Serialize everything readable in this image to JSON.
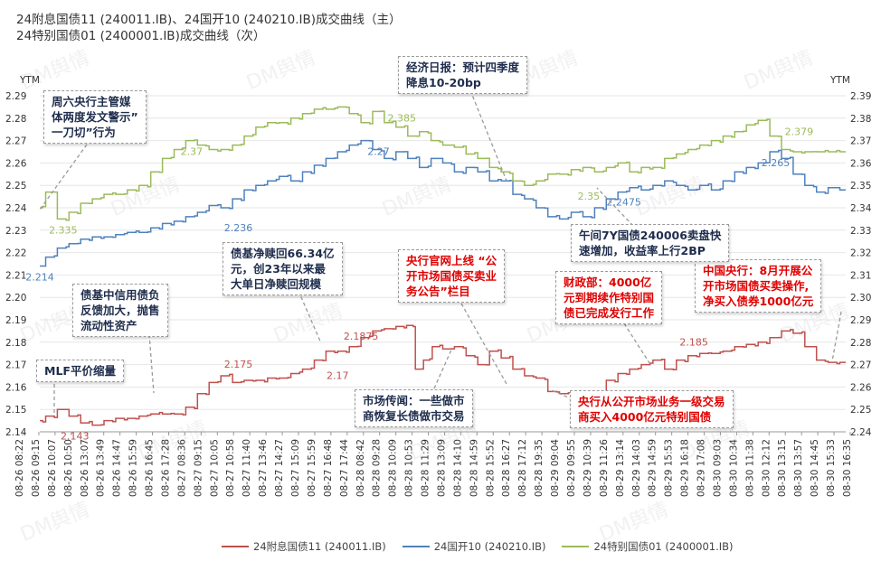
{
  "title_line1": "24附息国债11 (240011.IB)、24国开10 (240210.IB)成交曲线（主）",
  "title_line2": "24特别国债01 (2400001.IB)成交曲线（次）",
  "watermark": "DM舆情",
  "chart_data": {
    "type": "line",
    "y_left_label": "YTM",
    "y_right_label": "YTM",
    "y_left_range": [
      2.14,
      2.29
    ],
    "y_right_range": [
      2.24,
      2.39
    ],
    "y_left_ticks": [
      "2.14",
      "2.15",
      "2.16",
      "2.17",
      "2.18",
      "2.19",
      "2.20",
      "2.21",
      "2.22",
      "2.23",
      "2.24",
      "2.25",
      "2.26",
      "2.27",
      "2.28",
      "2.29"
    ],
    "y_right_ticks": [
      "2.24",
      "2.25",
      "2.26",
      "2.27",
      "2.28",
      "2.29",
      "2.30",
      "2.31",
      "2.32",
      "2.33",
      "2.34",
      "2.35",
      "2.36",
      "2.37",
      "2.38",
      "2.39"
    ],
    "x_ticks": [
      "08-26 08:22",
      "08-26 09:15",
      "08-26 10:07",
      "08-26 10:50",
      "08-26 13:07",
      "08-26 13:49",
      "08-26 14:47",
      "08-26 15:59",
      "08-26 16:45",
      "08-26 17:28",
      "08-27 08:36",
      "08-27 09:15",
      "08-27 10:05",
      "08-27 10:58",
      "08-27 11:40",
      "08-27 13:46",
      "08-27 14:27",
      "08-27 15:09",
      "08-27 15:59",
      "08-27 16:48",
      "08-27 17:44",
      "08-28 08:42",
      "08-28 09:28",
      "08-28 10:09",
      "08-28 10:53",
      "08-28 11:29",
      "08-28 13:09",
      "08-28 14:10",
      "08-28 14:59",
      "08-28 15:52",
      "08-28 16:27",
      "08-28 17:12",
      "08-28 19:35",
      "08-29 09:04",
      "08-29 09:55",
      "08-29 10:39",
      "08-29 11:26",
      "08-29 13:14",
      "08-29 14:03",
      "08-29 14:59",
      "08-29 15:53",
      "08-29 16:18",
      "08-29 17:08",
      "08-30 09:03",
      "08-30 10:34",
      "08-30 11:38",
      "08-30 12:12",
      "08-30 13:15",
      "08-30 13:57",
      "08-30 14:45",
      "08-30 15:33",
      "08-30 16:35"
    ],
    "series": [
      {
        "name": "24附息国债11 (240011.IB)",
        "axis": "left",
        "color": "#c0504d",
        "labels": [
          {
            "x": 3,
            "y": 2.143,
            "text": "2.143"
          },
          {
            "x": 17,
            "y": 2.175,
            "text": "2.175"
          },
          {
            "x": 27.5,
            "y": 2.1875,
            "text": "2.1875"
          },
          {
            "x": 25.5,
            "y": 2.17,
            "text": "2.17"
          },
          {
            "x": 36,
            "y": 2.154,
            "text": "2.154"
          },
          {
            "x": 56,
            "y": 2.185,
            "text": "2.185"
          }
        ],
        "points": [
          [
            0,
            2.145
          ],
          [
            1,
            2.147
          ],
          [
            2,
            2.15
          ],
          [
            3,
            2.147
          ],
          [
            4,
            2.144
          ],
          [
            5,
            2.143
          ],
          [
            6,
            2.145
          ],
          [
            7,
            2.146
          ],
          [
            8,
            2.146
          ],
          [
            9,
            2.147
          ],
          [
            10,
            2.148
          ],
          [
            11,
            2.148
          ],
          [
            12,
            2.148
          ],
          [
            13,
            2.151
          ],
          [
            14,
            2.157
          ],
          [
            15,
            2.162
          ],
          [
            16,
            2.165
          ],
          [
            17,
            2.162
          ],
          [
            18,
            2.163
          ],
          [
            19,
            2.163
          ],
          [
            20,
            2.164
          ],
          [
            21,
            2.164
          ],
          [
            22,
            2.166
          ],
          [
            23,
            2.168
          ],
          [
            24,
            2.172
          ],
          [
            25,
            2.176
          ],
          [
            26,
            2.176
          ],
          [
            27,
            2.178
          ],
          [
            28,
            2.182
          ],
          [
            29,
            2.185
          ],
          [
            30,
            2.186
          ],
          [
            31,
            2.187
          ],
          [
            31.8,
            2.1875
          ],
          [
            32.5,
            2.168
          ],
          [
            33.2,
            2.172
          ],
          [
            34,
            2.178
          ],
          [
            35,
            2.177
          ],
          [
            36,
            2.178
          ],
          [
            37,
            2.174
          ],
          [
            38,
            2.17
          ],
          [
            39,
            2.176
          ],
          [
            40,
            2.173
          ],
          [
            41,
            2.168
          ],
          [
            42,
            2.165
          ],
          [
            43,
            2.164
          ],
          [
            44,
            2.158
          ],
          [
            45,
            2.157
          ],
          [
            46,
            2.156
          ],
          [
            47,
            2.155
          ],
          [
            48,
            2.157
          ],
          [
            49,
            2.163
          ],
          [
            50,
            2.166
          ],
          [
            51,
            2.168
          ],
          [
            52,
            2.17
          ],
          [
            53,
            2.172
          ],
          [
            54,
            2.168
          ],
          [
            55,
            2.172
          ],
          [
            56,
            2.174
          ],
          [
            57,
            2.175
          ],
          [
            58,
            2.175
          ],
          [
            59,
            2.176
          ],
          [
            60,
            2.178
          ],
          [
            61,
            2.179
          ],
          [
            62,
            2.18
          ],
          [
            63,
            2.182
          ],
          [
            64,
            2.185
          ],
          [
            65,
            2.184
          ],
          [
            66,
            2.178
          ],
          [
            67,
            2.172
          ],
          [
            68,
            2.171
          ],
          [
            69,
            2.171
          ]
        ]
      },
      {
        "name": "24国开10 (240210.IB)",
        "axis": "left",
        "color": "#4f81bd",
        "labels": [
          {
            "x": 0,
            "y": 2.214,
            "text": "2.214"
          },
          {
            "x": 17,
            "y": 2.236,
            "text": "2.236"
          },
          {
            "x": 29,
            "y": 2.27,
            "text": "2.27"
          },
          {
            "x": 50,
            "y": 2.2475,
            "text": "2.2475"
          },
          {
            "x": 63,
            "y": 2.265,
            "text": "2.265"
          }
        ],
        "points": [
          [
            0,
            2.214
          ],
          [
            1,
            2.218
          ],
          [
            2,
            2.222
          ],
          [
            3,
            2.224
          ],
          [
            4,
            2.226
          ],
          [
            5,
            2.227
          ],
          [
            6,
            2.227
          ],
          [
            7,
            2.228
          ],
          [
            8,
            2.229
          ],
          [
            9,
            2.229
          ],
          [
            10,
            2.231
          ],
          [
            11,
            2.233
          ],
          [
            12,
            2.234
          ],
          [
            13,
            2.236
          ],
          [
            14,
            2.238
          ],
          [
            15,
            2.241
          ],
          [
            16,
            2.24
          ],
          [
            17,
            2.244
          ],
          [
            18,
            2.248
          ],
          [
            19,
            2.25
          ],
          [
            20,
            2.252
          ],
          [
            21,
            2.254
          ],
          [
            22,
            2.252
          ],
          [
            23,
            2.256
          ],
          [
            24,
            2.259
          ],
          [
            25,
            2.262
          ],
          [
            26,
            2.265
          ],
          [
            27,
            2.268
          ],
          [
            28,
            2.27
          ],
          [
            29,
            2.266
          ],
          [
            30,
            2.262
          ],
          [
            31,
            2.265
          ],
          [
            32,
            2.262
          ],
          [
            33,
            2.258
          ],
          [
            34,
            2.262
          ],
          [
            35,
            2.26
          ],
          [
            36,
            2.256
          ],
          [
            37,
            2.258
          ],
          [
            38,
            2.256
          ],
          [
            39,
            2.252
          ],
          [
            40,
            2.252
          ],
          [
            41,
            2.246
          ],
          [
            42,
            2.244
          ],
          [
            43,
            2.24
          ],
          [
            44,
            2.236
          ],
          [
            45,
            2.235
          ],
          [
            46,
            2.238
          ],
          [
            47,
            2.236
          ],
          [
            48,
            2.24
          ],
          [
            49,
            2.244
          ],
          [
            50,
            2.247
          ],
          [
            51,
            2.249
          ],
          [
            52,
            2.248
          ],
          [
            53,
            2.25
          ],
          [
            54,
            2.252
          ],
          [
            55,
            2.25
          ],
          [
            56,
            2.248
          ],
          [
            57,
            2.25
          ],
          [
            58,
            2.248
          ],
          [
            59,
            2.252
          ],
          [
            60,
            2.256
          ],
          [
            61,
            2.258
          ],
          [
            62,
            2.26
          ],
          [
            63,
            2.265
          ],
          [
            64,
            2.262
          ],
          [
            65,
            2.255
          ],
          [
            66,
            2.25
          ],
          [
            67,
            2.247
          ],
          [
            68,
            2.249
          ],
          [
            69,
            2.248
          ]
        ]
      },
      {
        "name": "24特别国债01 (2400001.IB)",
        "axis": "right",
        "color": "#9bbb59",
        "labels": [
          {
            "x": 2,
            "y": 2.335,
            "text": "2.335"
          },
          {
            "x": 13,
            "y": 2.37,
            "text": "2.37"
          },
          {
            "x": 31,
            "y": 2.385,
            "text": "2.385"
          },
          {
            "x": 47,
            "y": 2.35,
            "text": "2.35"
          },
          {
            "x": 65,
            "y": 2.379,
            "text": "2.379"
          }
        ],
        "points": [
          [
            0,
            2.34
          ],
          [
            1,
            2.347
          ],
          [
            2,
            2.335
          ],
          [
            3,
            2.338
          ],
          [
            4,
            2.342
          ],
          [
            5,
            2.344
          ],
          [
            6,
            2.346
          ],
          [
            7,
            2.346
          ],
          [
            8,
            2.348
          ],
          [
            9,
            2.35
          ],
          [
            10,
            2.356
          ],
          [
            11,
            2.362
          ],
          [
            12,
            2.366
          ],
          [
            13,
            2.37
          ],
          [
            14,
            2.368
          ],
          [
            15,
            2.366
          ],
          [
            16,
            2.366
          ],
          [
            17,
            2.368
          ],
          [
            18,
            2.372
          ],
          [
            19,
            2.376
          ],
          [
            20,
            2.378
          ],
          [
            21,
            2.378
          ],
          [
            22,
            2.38
          ],
          [
            23,
            2.382
          ],
          [
            24,
            2.384
          ],
          [
            25,
            2.384
          ],
          [
            26,
            2.385
          ],
          [
            27,
            2.382
          ],
          [
            28,
            2.378
          ],
          [
            29,
            2.383
          ],
          [
            30,
            2.378
          ],
          [
            31,
            2.376
          ],
          [
            32,
            2.372
          ],
          [
            33,
            2.374
          ],
          [
            34,
            2.37
          ],
          [
            35,
            2.368
          ],
          [
            36,
            2.367
          ],
          [
            37,
            2.364
          ],
          [
            38,
            2.362
          ],
          [
            39,
            2.358
          ],
          [
            40,
            2.356
          ],
          [
            41,
            2.352
          ],
          [
            42,
            2.35
          ],
          [
            43,
            2.352
          ],
          [
            44,
            2.355
          ],
          [
            45,
            2.355
          ],
          [
            46,
            2.357
          ],
          [
            47,
            2.358
          ],
          [
            48,
            2.356
          ],
          [
            49,
            2.358
          ],
          [
            50,
            2.36
          ],
          [
            51,
            2.356
          ],
          [
            52,
            2.358
          ],
          [
            53,
            2.358
          ],
          [
            54,
            2.362
          ],
          [
            55,
            2.364
          ],
          [
            56,
            2.366
          ],
          [
            57,
            2.368
          ],
          [
            58,
            2.37
          ],
          [
            59,
            2.372
          ],
          [
            60,
            2.374
          ],
          [
            61,
            2.377
          ],
          [
            62,
            2.379
          ],
          [
            63,
            2.372
          ],
          [
            64,
            2.366
          ],
          [
            65,
            2.365
          ],
          [
            66,
            2.365
          ],
          [
            67,
            2.365
          ],
          [
            68,
            2.365
          ],
          [
            69,
            2.365
          ]
        ]
      }
    ]
  },
  "annotations": [
    {
      "id": "ann-media-warning",
      "text": "周六央行主管媒\n体两度发文警示”\n一刀切”行为",
      "color": "navy"
    },
    {
      "id": "ann-economic-daily",
      "text": "经济日报：预计四季度\n降息10-20bp",
      "color": "navy"
    },
    {
      "id": "ann-fund-redemption",
      "text": "债基净赎回66.34亿\n元，创23年以来最\n大单日净赎回规模",
      "color": "navy"
    },
    {
      "id": "ann-pboc-column",
      "text": "央行官网上线 “公\n开市场国债买卖业\n务公告”栏目",
      "color": "red"
    },
    {
      "id": "ann-mof-4000",
      "text": "财政部：4000亿\n元到期续作特别国\n债已完成发行工作",
      "color": "red"
    },
    {
      "id": "ann-pboc-net-buy",
      "text": "中国央行：8月开展公\n开市场国债买卖操作,\n净买入债券1000亿元",
      "color": "red"
    },
    {
      "id": "ann-credit-debt",
      "text": "债基中信用债负\n反馈加大，抛售\n流动性资产",
      "color": "navy"
    },
    {
      "id": "ann-7y-bond",
      "text": "午间7Y国债240006卖盘快\n速增加，收益率上行2BP",
      "color": "navy"
    },
    {
      "id": "ann-mlf",
      "text": "MLF平价缩量",
      "color": "navy"
    },
    {
      "id": "ann-market-rumor",
      "text": "市场传闻：一些做市\n商恢复长债做市交易",
      "color": "navy"
    },
    {
      "id": "ann-primary-dealer",
      "text": "央行从公开市场业务一级交易\n商买入4000亿元特别国债",
      "color": "red"
    }
  ],
  "legend": [
    {
      "label": "24附息国债11 (240011.IB)",
      "color": "#c0504d"
    },
    {
      "label": "24国开10 (240210.IB)",
      "color": "#4f81bd"
    },
    {
      "label": "24特别国债01 (2400001.IB)",
      "color": "#9bbb59"
    }
  ]
}
